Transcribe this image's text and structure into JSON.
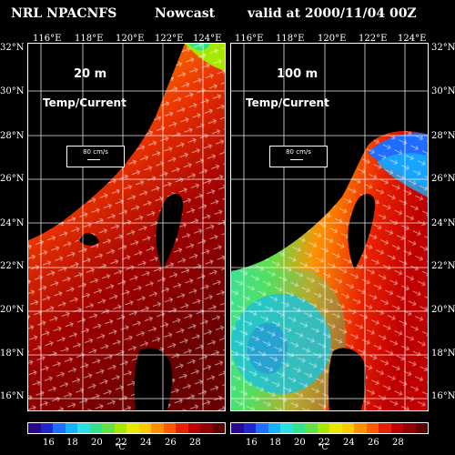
{
  "header": {
    "title_left": "NRL NPACNFS",
    "title_mid": "Nowcast",
    "title_right": "valid at 2000/11/04 00Z"
  },
  "map": {
    "lon_labels": [
      "116°E",
      "118°E",
      "120°E",
      "122°E",
      "124°E"
    ],
    "lat_labels": [
      "32°N",
      "30°N",
      "28°N",
      "26°N",
      "24°N",
      "22°N",
      "20°N",
      "18°N",
      "16°N"
    ],
    "panels": [
      {
        "depth": "20 m",
        "subtitle": "Temp/Current",
        "ref_label": "80 cm/s"
      },
      {
        "depth": "100 m",
        "subtitle": "Temp/Current",
        "ref_label": "80 cm/s"
      }
    ]
  },
  "colorbar": {
    "tick_labels": [
      "16",
      "18",
      "20",
      "22",
      "24",
      "26",
      "28"
    ],
    "unit": "°C",
    "colors": [
      "#2a0a8c",
      "#1a2ad0",
      "#1f6dff",
      "#16b0ff",
      "#2ae0e0",
      "#35e08a",
      "#62e04a",
      "#a8e800",
      "#e8e800",
      "#ffc800",
      "#ff9000",
      "#ff5a00",
      "#e82000",
      "#c00000",
      "#900000",
      "#600000"
    ]
  }
}
